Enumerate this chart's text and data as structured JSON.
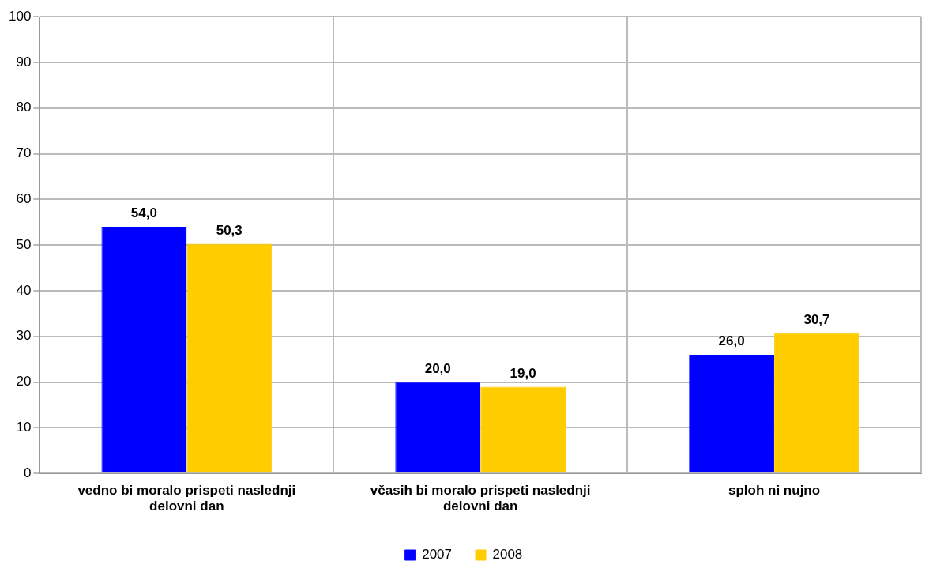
{
  "chart_data": {
    "type": "bar",
    "categories": [
      "vedno bi moralo prispeti naslednji delovni dan",
      "včasih bi moralo prispeti naslednji delovni dan",
      "sploh ni nujno"
    ],
    "series": [
      {
        "name": "2007",
        "color": "#0000ff",
        "values": [
          54.0,
          20.0,
          26.0
        ],
        "value_labels": [
          "54,0",
          "20,0",
          "26,0"
        ]
      },
      {
        "name": "2008",
        "color": "#ffcc00",
        "values": [
          50.3,
          19.0,
          30.7
        ],
        "value_labels": [
          "50,3",
          "19,0",
          "30,7"
        ]
      }
    ],
    "ylim": [
      0,
      100
    ],
    "yticks": [
      0,
      10,
      20,
      30,
      40,
      50,
      60,
      70,
      80,
      90,
      100
    ],
    "grid": true,
    "legend": "bottom"
  }
}
